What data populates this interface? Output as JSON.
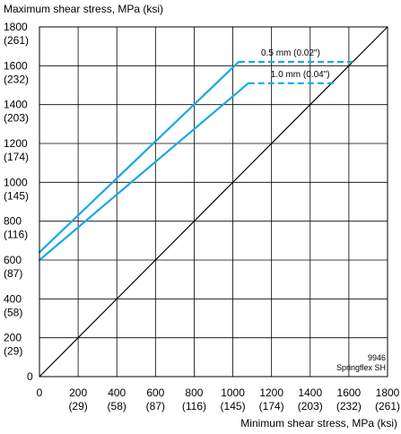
{
  "chart_data": {
    "type": "line",
    "ylabel": "Maximum shear stress, MPa (ksi)",
    "xlabel": "Minimum shear stress, MPa (ksi)",
    "xlim": [
      0,
      1800
    ],
    "ylim": [
      0,
      1800
    ],
    "grid": true,
    "x_ticks": [
      {
        "mpa": "0",
        "ksi": ""
      },
      {
        "mpa": "200",
        "ksi": "(29)"
      },
      {
        "mpa": "400",
        "ksi": "(58)"
      },
      {
        "mpa": "600",
        "ksi": "(87)"
      },
      {
        "mpa": "800",
        "ksi": "(116)"
      },
      {
        "mpa": "1000",
        "ksi": "(145)"
      },
      {
        "mpa": "1200",
        "ksi": "(174)"
      },
      {
        "mpa": "1400",
        "ksi": "(203)"
      },
      {
        "mpa": "1600",
        "ksi": "(232)"
      },
      {
        "mpa": "1800",
        "ksi": "(261)"
      }
    ],
    "y_ticks": [
      {
        "mpa": "0",
        "ksi": ""
      },
      {
        "mpa": "200",
        "ksi": "(29)"
      },
      {
        "mpa": "400",
        "ksi": "(58)"
      },
      {
        "mpa": "600",
        "ksi": "(87)"
      },
      {
        "mpa": "800",
        "ksi": "(116)"
      },
      {
        "mpa": "1000",
        "ksi": "(145)"
      },
      {
        "mpa": "1200",
        "ksi": "(174)"
      },
      {
        "mpa": "1400",
        "ksi": "(203)"
      },
      {
        "mpa": "1600",
        "ksi": "(232)"
      },
      {
        "mpa": "1800",
        "ksi": "(261)"
      }
    ],
    "diagonal": {
      "x": [
        0,
        1800
      ],
      "y": [
        0,
        1800
      ],
      "color": "#000000"
    },
    "series": [
      {
        "name": "0.5 mm (0.02\")",
        "color": "#1aa9e6",
        "solid": {
          "x": [
            0,
            1030
          ],
          "y": [
            640,
            1620
          ]
        },
        "dashed": {
          "x": [
            1030,
            1620
          ],
          "y": [
            1620,
            1620
          ]
        }
      },
      {
        "name": "1.0 mm (0.04\")",
        "color": "#1aa9e6",
        "solid": {
          "x": [
            0,
            1080
          ],
          "y": [
            600,
            1510
          ]
        },
        "dashed": {
          "x": [
            1080,
            1520
          ],
          "y": [
            1510,
            1510
          ]
        }
      }
    ],
    "annotation": [
      "9946",
      "Springflex SH"
    ]
  }
}
